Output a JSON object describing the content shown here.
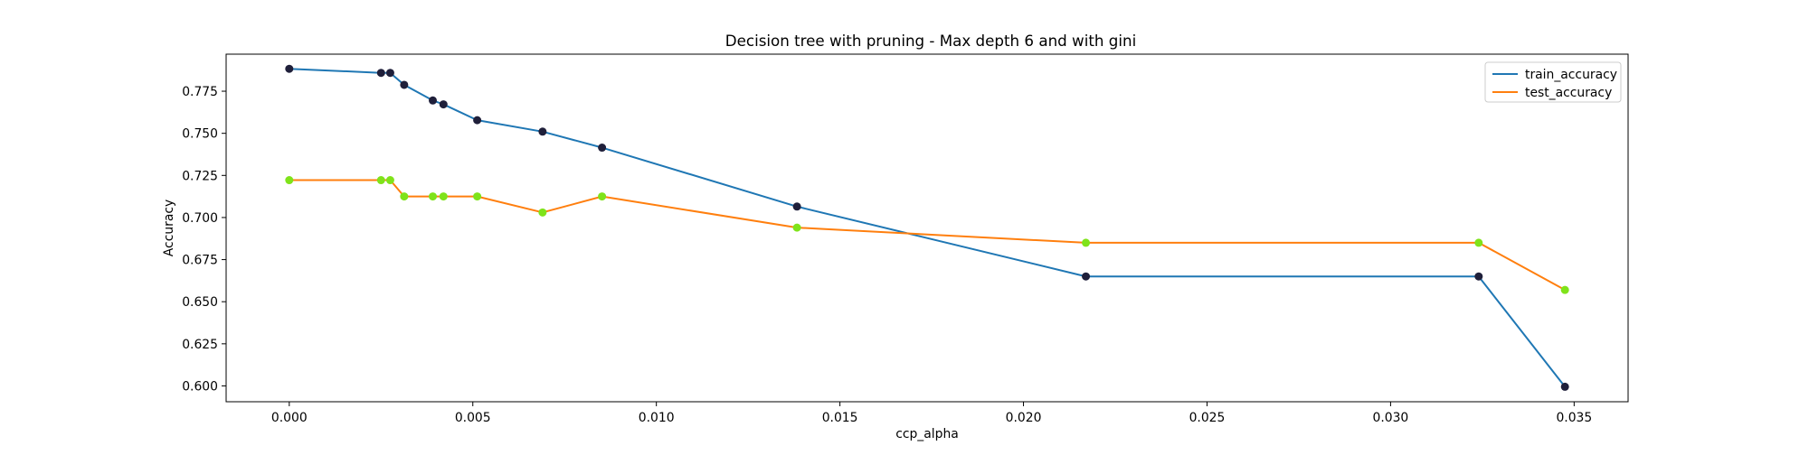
{
  "chart_data": {
    "type": "line",
    "title": "Decision tree with pruning - Max depth 6 and with gini",
    "xlabel": "ccp_alpha",
    "ylabel": "Accuracy",
    "xlim": [
      -0.00172,
      0.03647
    ],
    "ylim": [
      0.5906,
      0.797
    ],
    "xticks": [
      0.0,
      0.005,
      0.01,
      0.015,
      0.02,
      0.025,
      0.03,
      0.035
    ],
    "xtick_labels": [
      "0.000",
      "0.005",
      "0.010",
      "0.015",
      "0.020",
      "0.025",
      "0.030",
      "0.035"
    ],
    "yticks": [
      0.6,
      0.625,
      0.65,
      0.675,
      0.7,
      0.725,
      0.75,
      0.775
    ],
    "ytick_labels": [
      "0.600",
      "0.625",
      "0.650",
      "0.675",
      "0.700",
      "0.725",
      "0.750",
      "0.775"
    ],
    "x": [
      0.0,
      0.0025,
      0.00275,
      0.00313,
      0.00391,
      0.0042,
      0.00512,
      0.0069,
      0.00852,
      0.01383,
      0.0217,
      0.0324,
      0.03475
    ],
    "series": [
      {
        "name": "train_accuracy",
        "color": "#1f77b4",
        "marker_color": "#1f1f3a",
        "values": [
          0.7883,
          0.7859,
          0.7859,
          0.7788,
          0.7695,
          0.7672,
          0.7578,
          0.751,
          0.7415,
          0.7065,
          0.665,
          0.665,
          0.5995
        ]
      },
      {
        "name": "test_accuracy",
        "color": "#ff7f0e",
        "marker_color": "#7fe31a",
        "values": [
          0.7222,
          0.7222,
          0.7222,
          0.7125,
          0.7125,
          0.7125,
          0.7125,
          0.703,
          0.7125,
          0.694,
          0.685,
          0.685,
          0.657
        ]
      }
    ],
    "grid": false,
    "legend_position": "top-right"
  }
}
